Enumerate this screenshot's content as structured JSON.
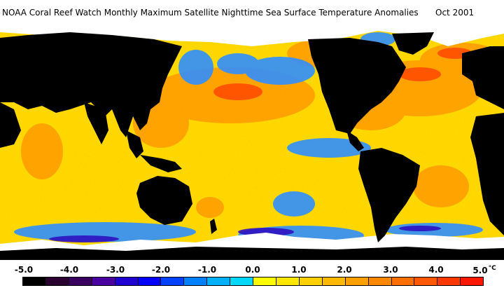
{
  "title": {
    "text": "NOAA Coral Reef Watch Monthly Maximum Satellite Nighttime Sea Surface Temperature Anomalies",
    "date": "Oct 2001"
  },
  "legend": {
    "unit": "°C",
    "ticks": [
      "-5.0",
      "-4.0",
      "-3.0",
      "-2.0",
      "-1.0",
      "0.0",
      "1.0",
      "2.0",
      "3.0",
      "4.0",
      "5.0"
    ],
    "swatches": [
      "#000000",
      "#2a0030",
      "#3a0060",
      "#4a00a0",
      "#2000d0",
      "#0000ff",
      "#0040ff",
      "#0080ff",
      "#00b0ff",
      "#00d8ff",
      "#ffff00",
      "#ffe600",
      "#ffd000",
      "#ffb800",
      "#ffa000",
      "#ff8800",
      "#ff7000",
      "#ff5800",
      "#ff3800",
      "#ff1800"
    ]
  },
  "map_colors": {
    "land": "#000000",
    "ice": "#ffffff",
    "ocean_warm": "#ffd800",
    "ocean_hot": "#ff8c00",
    "ocean_cool": "#2f8fff"
  }
}
